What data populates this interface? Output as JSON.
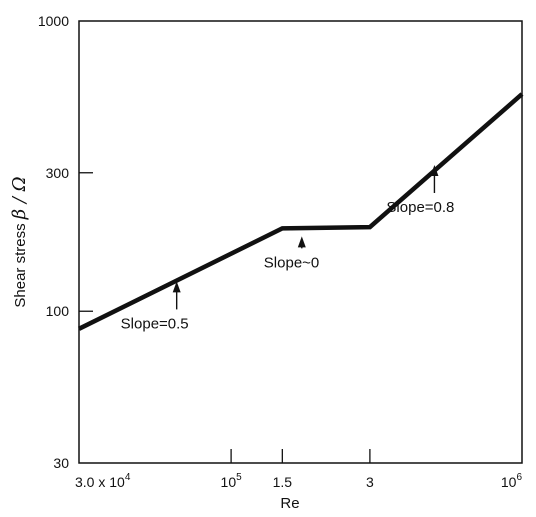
{
  "chart_data": {
    "type": "line",
    "title": "",
    "xlabel": "Re",
    "ylabel_parts": {
      "text": "Shear stress ",
      "symbol": "β / Ω"
    },
    "x_scale": "log",
    "y_scale": "log",
    "xlim": [
      30000,
      1000000
    ],
    "ylim": [
      30,
      1000
    ],
    "grid": false,
    "legend": "none",
    "x_ticks": [
      {
        "value": 30000,
        "label": "3.0 x 10",
        "sup": "4"
      },
      {
        "value": 100000,
        "label": "10",
        "sup": "5"
      },
      {
        "value": 150000,
        "label": "1.5",
        "sup": ""
      },
      {
        "value": 300000,
        "label": "3",
        "sup": ""
      },
      {
        "value": 1000000,
        "label": "10",
        "sup": "6"
      }
    ],
    "y_ticks": [
      {
        "value": 30,
        "label": "30"
      },
      {
        "value": 100,
        "label": "100"
      },
      {
        "value": 300,
        "label": "300"
      },
      {
        "value": 1000,
        "label": "1000"
      }
    ],
    "series": [
      {
        "x": [
          30000,
          150000,
          300000,
          1000000
        ],
        "y": [
          87,
          193,
          195,
          560
        ]
      }
    ],
    "annotations": [
      {
        "text": "Slope=0.5",
        "arrow_x": 65000,
        "arrow_y": 135
      },
      {
        "text": "Slope~0",
        "arrow_x": 175000,
        "arrow_y": 193
      },
      {
        "text": "Slope=0.8",
        "arrow_x": 500000,
        "arrow_y": 340
      }
    ],
    "colors": {
      "line": "#111111",
      "axis": "#111111",
      "background": "#ffffff"
    }
  }
}
